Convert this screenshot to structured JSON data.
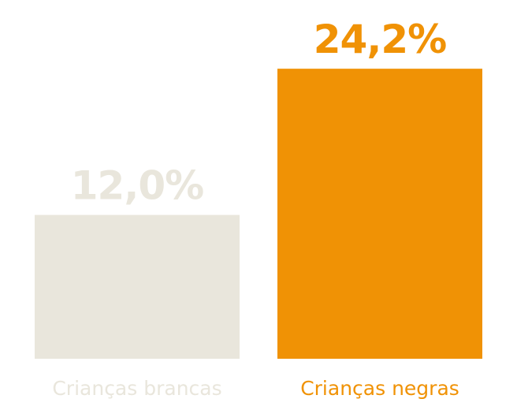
{
  "chart_data": {
    "type": "bar",
    "categories": [
      "Crianças brancas",
      "Crianças negras"
    ],
    "values": [
      12.0,
      24.2
    ],
    "value_labels": [
      "12,0%",
      "24,2%"
    ],
    "colors": [
      "#e9e6dc",
      "#f09205"
    ]
  }
}
